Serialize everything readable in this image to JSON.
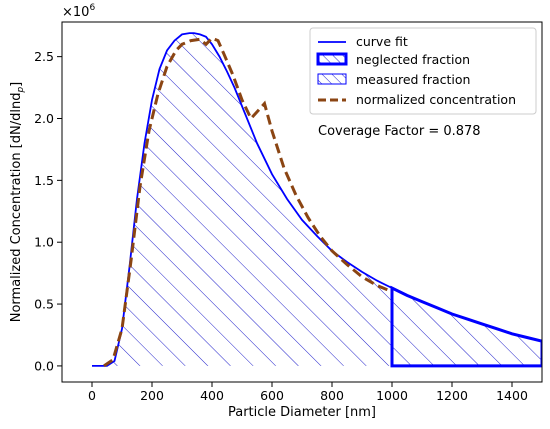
{
  "chart_data": {
    "type": "line",
    "xlabel": "Particle Diameter [nm]",
    "ylabel": "Normalized Concentration [dN/dlnd",
    "ylabel_sub": "p",
    "ylabel_end": "]",
    "y_multiplier_base": "×10",
    "y_multiplier_exp": "6",
    "xlim": [
      -100,
      1500
    ],
    "ylim": [
      -0.13,
      2.78
    ],
    "x_ticks": [
      0,
      200,
      400,
      600,
      800,
      1000,
      1200,
      1400
    ],
    "x_tick_labels": [
      "0",
      "200",
      "400",
      "600",
      "800",
      "1000",
      "1200",
      "1400"
    ],
    "y_ticks": [
      0.0,
      0.5,
      1.0,
      1.5,
      2.0,
      2.5
    ],
    "y_tick_labels": [
      "0.0",
      "0.5",
      "1.0",
      "1.5",
      "2.0",
      "2.5"
    ],
    "cutoff_diameter": 1000,
    "annotation": "Coverage Factor = 0.878",
    "legend_position": "top-right",
    "legend": [
      {
        "label": "curve fit",
        "style": "line",
        "color": "#0000ff"
      },
      {
        "label": "neglected fraction",
        "style": "hatch-bold",
        "color": "#0000ff"
      },
      {
        "label": "measured fraction",
        "style": "hatch",
        "color": "#0000ff"
      },
      {
        "label": "normalized concentration",
        "style": "dashed",
        "color": "#8b4513"
      }
    ],
    "series": [
      {
        "name": "curve fit",
        "color": "#0000ff",
        "x": [
          0,
          50,
          75,
          100,
          125,
          150,
          175,
          200,
          225,
          250,
          275,
          300,
          325,
          340,
          360,
          380,
          400,
          425,
          450,
          475,
          500,
          550,
          600,
          650,
          700,
          750,
          800,
          850,
          900,
          950,
          1000,
          1050,
          1100,
          1150,
          1200,
          1250,
          1300,
          1350,
          1400,
          1450,
          1500
        ],
        "y": [
          0,
          0.0,
          0.04,
          0.3,
          0.8,
          1.35,
          1.8,
          2.15,
          2.4,
          2.55,
          2.63,
          2.68,
          2.69,
          2.69,
          2.68,
          2.66,
          2.6,
          2.5,
          2.38,
          2.25,
          2.1,
          1.8,
          1.55,
          1.35,
          1.18,
          1.05,
          0.93,
          0.84,
          0.76,
          0.69,
          0.63,
          0.57,
          0.52,
          0.47,
          0.42,
          0.38,
          0.34,
          0.3,
          0.26,
          0.23,
          0.2
        ]
      },
      {
        "name": "normalized concentration",
        "color": "#8b4513",
        "x": [
          40,
          70,
          100,
          130,
          160,
          190,
          220,
          250,
          280,
          300,
          330,
          360,
          380,
          400,
          420,
          440,
          470,
          500,
          530,
          560,
          575,
          600,
          640,
          680,
          720,
          760,
          800,
          850,
          900,
          950,
          1000
        ],
        "y": [
          0.0,
          0.05,
          0.3,
          0.85,
          1.45,
          1.9,
          2.2,
          2.42,
          2.55,
          2.6,
          2.63,
          2.64,
          2.6,
          2.65,
          2.63,
          2.52,
          2.35,
          2.15,
          2.0,
          2.08,
          2.12,
          1.9,
          1.6,
          1.38,
          1.2,
          1.05,
          0.93,
          0.82,
          0.72,
          0.65,
          0.6
        ]
      }
    ]
  }
}
